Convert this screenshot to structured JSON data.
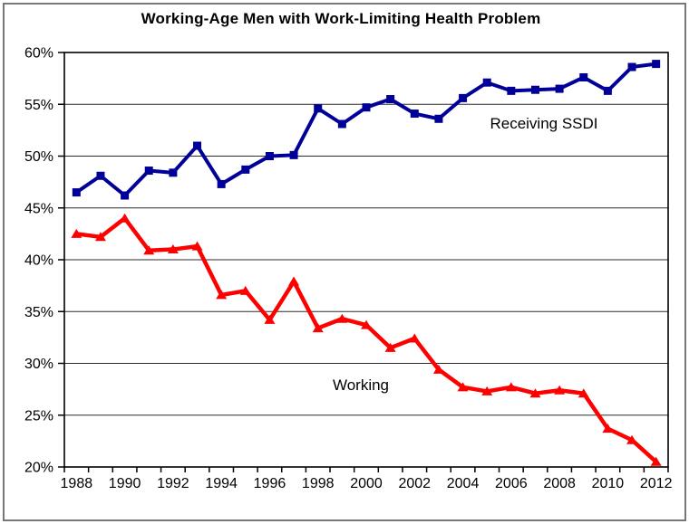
{
  "chart_data": {
    "type": "line",
    "title": "Working-Age Men with Work-Limiting Health Problem",
    "x": [
      1988,
      1989,
      1990,
      1991,
      1992,
      1993,
      1994,
      1995,
      1996,
      1997,
      1998,
      1999,
      2000,
      2001,
      2002,
      2003,
      2004,
      2005,
      2006,
      2007,
      2008,
      2009,
      2010,
      2011,
      2012
    ],
    "series": [
      {
        "name": "Receiving SSDI",
        "color": "#000099",
        "marker": "square",
        "values": [
          46.5,
          48.1,
          46.2,
          48.6,
          48.4,
          51.0,
          47.3,
          48.7,
          50.0,
          50.1,
          54.6,
          53.1,
          54.7,
          55.5,
          54.1,
          53.6,
          55.6,
          57.1,
          56.3,
          56.4,
          56.5,
          57.6,
          56.3,
          58.6,
          58.9
        ]
      },
      {
        "name": "Working",
        "color": "#ff0000",
        "marker": "triangle",
        "values": [
          42.5,
          42.2,
          44.0,
          40.9,
          41.0,
          41.3,
          36.6,
          37.0,
          34.2,
          37.9,
          33.4,
          34.3,
          33.7,
          31.5,
          32.4,
          29.4,
          27.7,
          27.3,
          27.7,
          27.1,
          27.4,
          27.1,
          23.7,
          22.6,
          20.5
        ]
      }
    ],
    "ylim": [
      20,
      60
    ],
    "ytick_step": 5,
    "y_tick_labels": [
      "20%",
      "25%",
      "30%",
      "35%",
      "40%",
      "45%",
      "50%",
      "55%",
      "60%"
    ],
    "x_tick_labels": [
      "1988",
      "1990",
      "1992",
      "1994",
      "1996",
      "1998",
      "2000",
      "2002",
      "2004",
      "2006",
      "2008",
      "2010",
      "2012"
    ],
    "grid": "horizontal",
    "legend_position": "none",
    "annotations": [
      "Receiving SSDI",
      "Working"
    ]
  }
}
